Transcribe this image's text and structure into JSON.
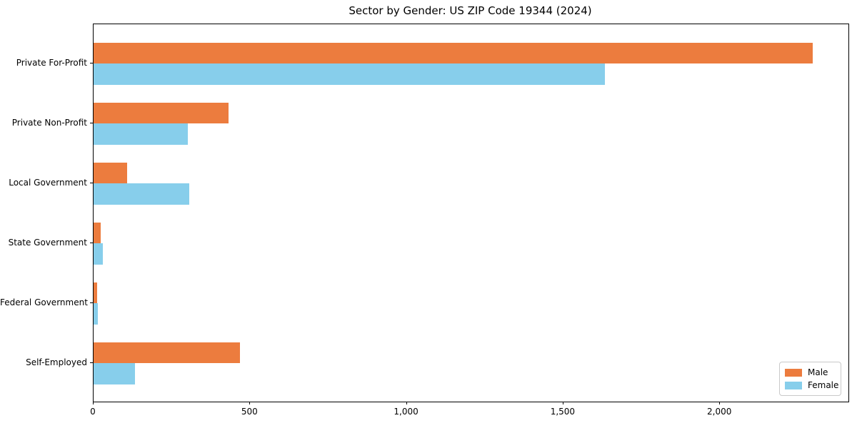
{
  "chart_data": {
    "type": "bar",
    "orientation": "horizontal",
    "title": "Sector by Gender: US ZIP Code 19344 (2024)",
    "categories": [
      "Private For-Profit",
      "Private Non-Profit",
      "Local Government",
      "State Government",
      "Federal Government",
      "Self-Employed"
    ],
    "series": [
      {
        "name": "Male",
        "color": "#ec7c3e",
        "values": [
          2295,
          432,
          107,
          22,
          11,
          468
        ]
      },
      {
        "name": "Female",
        "color": "#87ceeb",
        "values": [
          1632,
          302,
          306,
          30,
          13,
          132
        ]
      }
    ],
    "xlabel": "",
    "ylabel": "",
    "xlim": [
      0,
      2410
    ],
    "x_ticks": [
      0,
      500,
      1000,
      1500,
      2000
    ],
    "x_tick_labels": [
      "0",
      "500",
      "1,000",
      "1,500",
      "2,000"
    ],
    "grid": false,
    "legend": {
      "position": "lower right",
      "entries": [
        "Male",
        "Female"
      ]
    }
  },
  "colors": {
    "male": "#ec7c3e",
    "female": "#87ceeb",
    "spine": "#000000",
    "legend_border": "#c9c9c9",
    "background": "#ffffff",
    "text": "#000000"
  }
}
